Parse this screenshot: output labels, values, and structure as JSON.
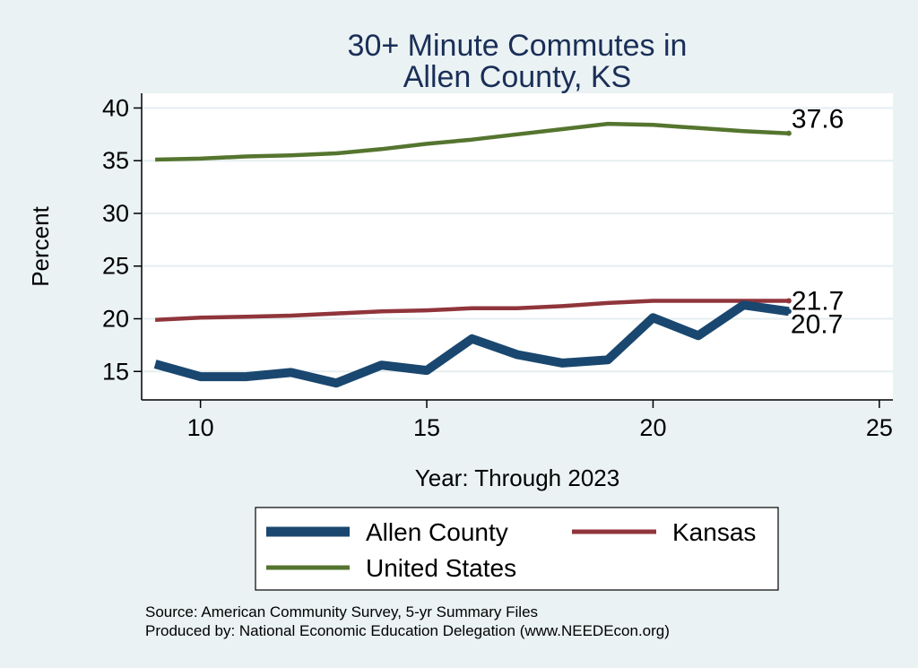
{
  "chart_data": {
    "type": "line",
    "title": [
      "30+ Minute Commutes in",
      "Allen County, KS"
    ],
    "xlabel": "Year: Through 2023",
    "ylabel": "Percent",
    "xlim": [
      8.7,
      25.3
    ],
    "ylim": [
      12.3,
      41.4
    ],
    "xticks": [
      "10",
      "15",
      "20",
      "25"
    ],
    "yticks": [
      "15",
      "20",
      "25",
      "30",
      "35",
      "40"
    ],
    "x": [
      9,
      10,
      11,
      12,
      13,
      14,
      15,
      16,
      17,
      18,
      19,
      20,
      21,
      22,
      23
    ],
    "series": [
      {
        "name": "Allen County",
        "color": "#1a476f",
        "values": [
          15.7,
          14.5,
          14.5,
          14.9,
          13.9,
          15.6,
          15.1,
          18.1,
          16.6,
          15.8,
          16.1,
          20.1,
          18.4,
          21.3,
          20.7
        ],
        "end_label": "20.7"
      },
      {
        "name": "Kansas",
        "color": "#90353b",
        "values": [
          19.9,
          20.1,
          20.2,
          20.3,
          20.5,
          20.7,
          20.8,
          21.0,
          21.0,
          21.2,
          21.5,
          21.7,
          21.7,
          21.7,
          21.7
        ],
        "end_label": "21.7"
      },
      {
        "name": "United States",
        "color": "#55752f",
        "values": [
          35.1,
          35.2,
          35.4,
          35.5,
          35.7,
          36.1,
          36.6,
          37.0,
          37.5,
          38.0,
          38.5,
          38.4,
          38.1,
          37.8,
          37.6
        ],
        "end_label": "37.6"
      }
    ],
    "legend": [
      "Allen County",
      "Kansas",
      "United States"
    ],
    "legend_position": "bottom"
  },
  "footer": {
    "source": "Source: American Community Survey, 5-yr Summary Files",
    "produced": "Produced by: National Economic Education Delegation (www.NEEDEcon.org)"
  }
}
